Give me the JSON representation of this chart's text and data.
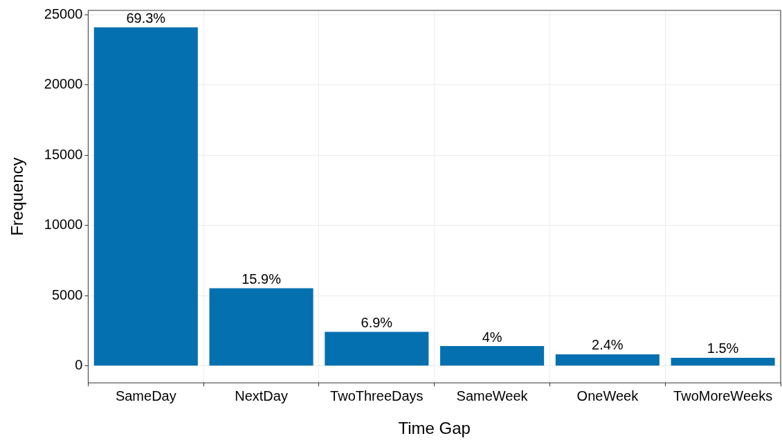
{
  "chart_data": {
    "type": "bar",
    "xlabel": "Time Gap",
    "ylabel": "Frequency",
    "categories": [
      "SameDay",
      "NextDay",
      "TwoThreeDays",
      "SameWeek",
      "OneWeek",
      "TwoMoreWeeks"
    ],
    "values": [
      24100,
      5530,
      2430,
      1410,
      830,
      580
    ],
    "annotations": [
      {
        "text": "69.3%",
        "x": "SameDay",
        "y": 24100
      },
      {
        "text": "15.9%",
        "x": "NextDay",
        "y": 5530
      },
      {
        "text": "6.9%",
        "x": "TwoThreeDays",
        "y": 2430
      },
      {
        "text": "4%",
        "x": "SameWeek",
        "y": 1410
      },
      {
        "text": "2.4%",
        "x": "OneWeek",
        "y": 830
      },
      {
        "text": "1.5%",
        "x": "TwoMoreWeeks",
        "y": 580
      }
    ],
    "color": "#0570b0",
    "ylim": [
      -1205,
      25305
    ],
    "yticks": [
      0,
      5000,
      10000,
      15000,
      20000,
      25000
    ],
    "grid": true,
    "legend": false
  }
}
